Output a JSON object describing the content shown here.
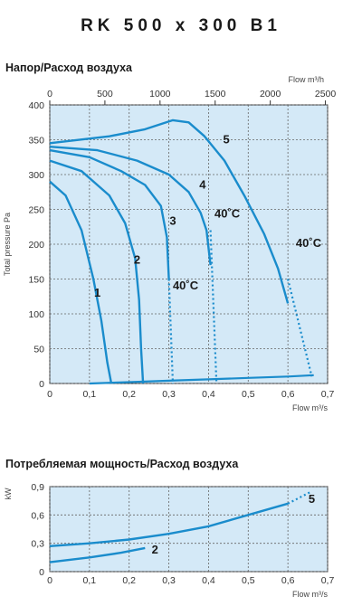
{
  "header": {
    "model": "RK 500 x 300 B1"
  },
  "chart_data": [
    {
      "type": "line",
      "title": "Напор/Расход воздуха",
      "ylabel": "Total pressure Pa",
      "xlabel": "Flow m³/s",
      "x2label": "Flow m³/h",
      "xlim": [
        0,
        0.7
      ],
      "ylim": [
        0,
        400
      ],
      "x_ticks": [
        "0",
        "0,1",
        "0,2",
        "0,3",
        "0,4",
        "0,5",
        "0,6",
        "0,7"
      ],
      "x2_ticks": [
        "0",
        "500",
        "1000",
        "1500",
        "2000",
        "2500"
      ],
      "y_ticks": [
        "0",
        "50",
        "100",
        "150",
        "200",
        "250",
        "300",
        "350",
        "400"
      ],
      "grid": true,
      "colors": {
        "curve": "#1a8ccc",
        "plot_bg": "#d4e9f7",
        "grid": "#666666"
      },
      "series": [
        {
          "name": "1",
          "x": [
            0,
            0.04,
            0.08,
            0.11,
            0.13,
            0.145,
            0.155
          ],
          "y": [
            290,
            270,
            220,
            150,
            90,
            30,
            0
          ]
        },
        {
          "name": "2",
          "x": [
            0,
            0.08,
            0.15,
            0.19,
            0.215,
            0.225,
            0.23,
            0.235
          ],
          "y": [
            320,
            305,
            270,
            230,
            180,
            120,
            50,
            0
          ]
        },
        {
          "name": "3",
          "x": [
            0,
            0.1,
            0.18,
            0.24,
            0.28,
            0.295,
            0.3,
            0.305,
            0.31
          ],
          "y": [
            335,
            325,
            305,
            285,
            255,
            210,
            150,
            80,
            0
          ]
        },
        {
          "name": "4",
          "x": [
            0,
            0.12,
            0.22,
            0.3,
            0.35,
            0.38,
            0.395,
            0.405,
            0.41,
            0.42
          ],
          "y": [
            340,
            335,
            320,
            300,
            275,
            245,
            220,
            170,
            100,
            0
          ]
        },
        {
          "name": "5",
          "x": [
            0,
            0.15,
            0.24,
            0.31,
            0.35,
            0.39,
            0.44,
            0.49,
            0.54,
            0.575,
            0.6,
            0.63,
            0.66
          ],
          "y": [
            345,
            355,
            365,
            378,
            375,
            355,
            320,
            270,
            215,
            165,
            115,
            60,
            10
          ]
        }
      ],
      "system_curve": {
        "x": [
          0.1,
          0.2,
          0.3,
          0.4,
          0.5,
          0.6,
          0.665
        ],
        "y": [
          0,
          2,
          4,
          6,
          8,
          10,
          12
        ]
      },
      "annotations": [
        {
          "text": "40˚C",
          "x": 0.31,
          "y": 135
        },
        {
          "text": "40˚C",
          "x": 0.415,
          "y": 238
        },
        {
          "text": "40˚C",
          "x": 0.62,
          "y": 196
        }
      ]
    },
    {
      "type": "line",
      "title": "Потребляемая мощность/Расход воздуха",
      "ylabel": "kW",
      "xlabel": "Flow m³/s",
      "xlim": [
        0,
        0.7
      ],
      "ylim": [
        0,
        0.9
      ],
      "x_ticks": [
        "0",
        "0,1",
        "0,2",
        "0,3",
        "0,4",
        "0,5",
        "0,6",
        "0,7"
      ],
      "y_ticks": [
        "0",
        "0,3",
        "0,6",
        "0,9"
      ],
      "grid": true,
      "series": [
        {
          "name": "2",
          "x": [
            0,
            0.1,
            0.18,
            0.24
          ],
          "y": [
            0.1,
            0.15,
            0.2,
            0.25
          ]
        },
        {
          "name": "5",
          "x": [
            0,
            0.1,
            0.2,
            0.3,
            0.4,
            0.5,
            0.6,
            0.66
          ],
          "y": [
            0.27,
            0.3,
            0.34,
            0.4,
            0.48,
            0.6,
            0.72,
            0.85
          ]
        }
      ]
    }
  ]
}
